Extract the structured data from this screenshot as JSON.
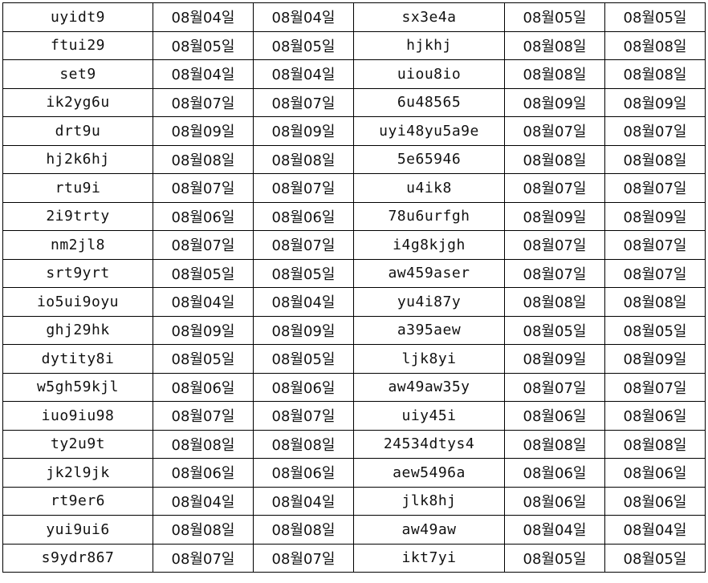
{
  "rows": [
    [
      "uyidt9",
      "08월04일",
      "08월04일",
      "sx3e4a",
      "08월05일",
      "08월05일"
    ],
    [
      "ftui29",
      "08월05일",
      "08월05일",
      "hjkhj",
      "08월08일",
      "08월08일"
    ],
    [
      "set9",
      "08월04일",
      "08월04일",
      "uiou8io",
      "08월08일",
      "08월08일"
    ],
    [
      "ik2yg6u",
      "08월07일",
      "08월07일",
      "6u48565",
      "08월09일",
      "08월09일"
    ],
    [
      "drt9u",
      "08월09일",
      "08월09일",
      "uyi48yu5a9e",
      "08월07일",
      "08월07일"
    ],
    [
      "hj2k6hj",
      "08월08일",
      "08월08일",
      "5e65946",
      "08월08일",
      "08월08일"
    ],
    [
      "rtu9i",
      "08월07일",
      "08월07일",
      "u4ik8",
      "08월07일",
      "08월07일"
    ],
    [
      "2i9trty",
      "08월06일",
      "08월06일",
      "78u6urfgh",
      "08월09일",
      "08월09일"
    ],
    [
      "nm2jl8",
      "08월07일",
      "08월07일",
      "i4g8kjgh",
      "08월07일",
      "08월07일"
    ],
    [
      "srt9yrt",
      "08월05일",
      "08월05일",
      "aw459aser",
      "08월07일",
      "08월07일"
    ],
    [
      "io5ui9oyu",
      "08월04일",
      "08월04일",
      "yu4i87y",
      "08월08일",
      "08월08일"
    ],
    [
      "ghj29hk",
      "08월09일",
      "08월09일",
      "a395aew",
      "08월05일",
      "08월05일"
    ],
    [
      "dytity8i",
      "08월05일",
      "08월05일",
      "ljk8yi",
      "08월09일",
      "08월09일"
    ],
    [
      "w5gh59kjl",
      "08월06일",
      "08월06일",
      "aw49aw35y",
      "08월07일",
      "08월07일"
    ],
    [
      "iuo9iu98",
      "08월07일",
      "08월07일",
      "uiy45i",
      "08월06일",
      "08월06일"
    ],
    [
      "ty2u9t",
      "08월08일",
      "08월08일",
      "24534dtys4",
      "08월08일",
      "08월08일"
    ],
    [
      "jk2l9jk",
      "08월06일",
      "08월06일",
      "aew5496a",
      "08월06일",
      "08월06일"
    ],
    [
      "rt9er6",
      "08월04일",
      "08월04일",
      "jlk8hj",
      "08월06일",
      "08월06일"
    ],
    [
      "yui9ui6",
      "08월08일",
      "08월08일",
      "aw49aw",
      "08월04일",
      "08월04일"
    ],
    [
      "s9ydr867",
      "08월07일",
      "08월07일",
      "ikt7yi",
      "08월05일",
      "08월05일"
    ]
  ]
}
